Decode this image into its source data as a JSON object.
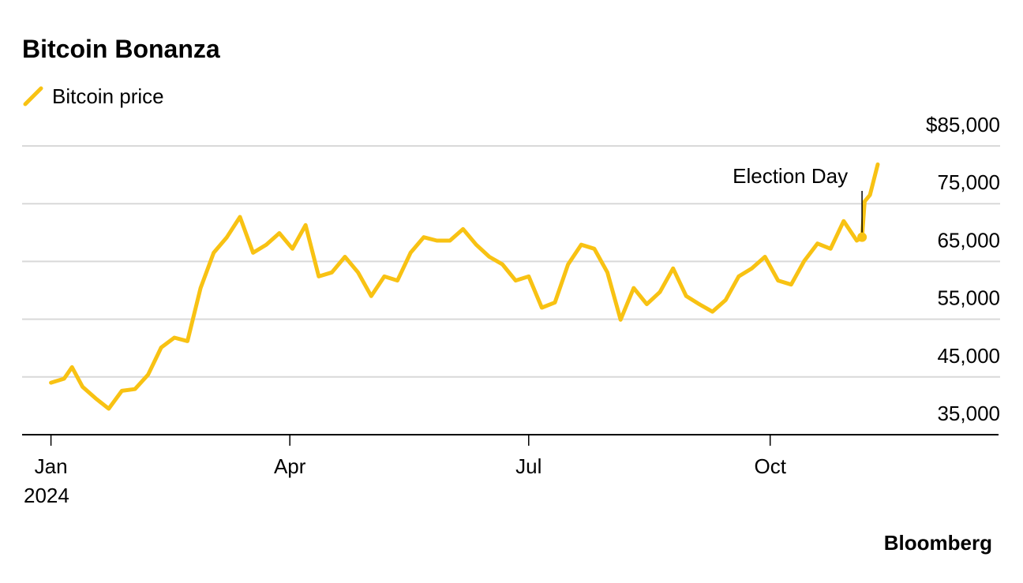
{
  "chart_data": {
    "type": "line",
    "title": "Bitcoin Bonanza",
    "source": "Bloomberg",
    "x": [
      "2024-01-01",
      "2024-01-06",
      "2024-01-09",
      "2024-01-13",
      "2024-01-18",
      "2024-01-23",
      "2024-01-28",
      "2024-02-02",
      "2024-02-07",
      "2024-02-12",
      "2024-02-17",
      "2024-02-22",
      "2024-02-27",
      "2024-03-03",
      "2024-03-08",
      "2024-03-13",
      "2024-03-18",
      "2024-03-23",
      "2024-03-28",
      "2024-04-02",
      "2024-04-07",
      "2024-04-12",
      "2024-04-17",
      "2024-04-22",
      "2024-04-27",
      "2024-05-02",
      "2024-05-07",
      "2024-05-12",
      "2024-05-17",
      "2024-05-22",
      "2024-05-27",
      "2024-06-01",
      "2024-06-06",
      "2024-06-11",
      "2024-06-16",
      "2024-06-21",
      "2024-06-26",
      "2024-07-01",
      "2024-07-06",
      "2024-07-11",
      "2024-07-16",
      "2024-07-21",
      "2024-07-26",
      "2024-07-31",
      "2024-08-05",
      "2024-08-10",
      "2024-08-15",
      "2024-08-20",
      "2024-08-25",
      "2024-08-30",
      "2024-09-04",
      "2024-09-09",
      "2024-09-14",
      "2024-09-19",
      "2024-09-24",
      "2024-09-29",
      "2024-10-04",
      "2024-10-09",
      "2024-10-14",
      "2024-10-19",
      "2024-10-24",
      "2024-10-29",
      "2024-11-03",
      "2024-11-05",
      "2024-11-06",
      "2024-11-08",
      "2024-11-11"
    ],
    "series": [
      {
        "name": "Bitcoin price",
        "color": "#f8c213",
        "values": [
          44000,
          44700,
          46700,
          43300,
          41300,
          39500,
          42600,
          42900,
          45400,
          50100,
          51800,
          51200,
          60400,
          66500,
          69200,
          72700,
          66500,
          67900,
          69900,
          67200,
          71300,
          62400,
          63100,
          65800,
          63100,
          59000,
          62400,
          61700,
          66500,
          69200,
          68600,
          68600,
          70600,
          67900,
          65800,
          64500,
          61700,
          62400,
          57000,
          57900,
          64500,
          67900,
          67200,
          63100,
          54900,
          60400,
          57600,
          59700,
          63800,
          59000,
          57600,
          56300,
          58300,
          62400,
          63800,
          65800,
          61700,
          61000,
          65100,
          68100,
          67200,
          72000,
          68600,
          69200,
          75400,
          76500,
          81800
        ]
      }
    ],
    "xlim": [
      "2023-12-21",
      "2024-12-27"
    ],
    "xticks": [
      {
        "value": "2024-01-01",
        "label": "Jan"
      },
      {
        "value": "2024-04-01",
        "label": "Apr"
      },
      {
        "value": "2024-07-01",
        "label": "Jul"
      },
      {
        "value": "2024-10-01",
        "label": "Oct"
      }
    ],
    "x_year_label": "2024",
    "ylim": [
      35000,
      85000
    ],
    "yticks": [
      {
        "value": 35000,
        "label": "35,000"
      },
      {
        "value": 45000,
        "label": "45,000"
      },
      {
        "value": 55000,
        "label": "55,000"
      },
      {
        "value": 65000,
        "label": "65,000"
      },
      {
        "value": 75000,
        "label": "75,000"
      },
      {
        "value": 85000,
        "label": "$85,000"
      }
    ],
    "grid": true,
    "legend": "top-left",
    "annotation": {
      "text": "Election Day",
      "x": "2024-11-05",
      "value": 69200
    }
  }
}
